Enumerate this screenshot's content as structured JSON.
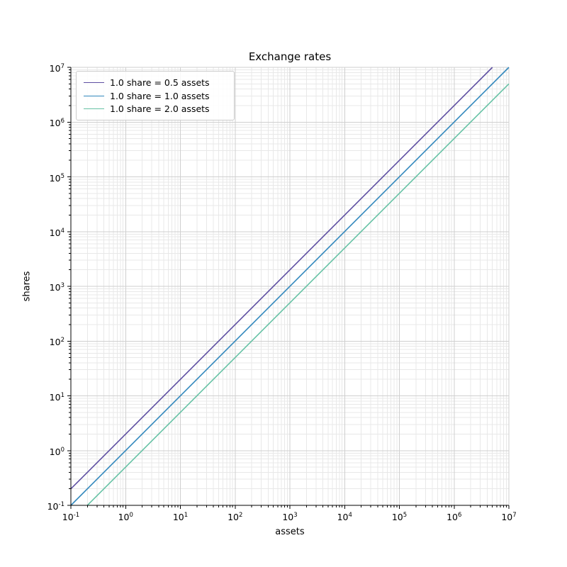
{
  "chart_data": {
    "type": "line",
    "title": "Exchange rates",
    "xlabel": "assets",
    "ylabel": "shares",
    "xscale": "log",
    "yscale": "log",
    "xlim": [
      0.1,
      10000000
    ],
    "ylim": [
      0.1,
      10000000
    ],
    "tick_exponents": [
      -1,
      0,
      1,
      2,
      3,
      4,
      5,
      6,
      7
    ],
    "grid": "major and minor gridlines on",
    "legend_location": "upper left",
    "series": [
      {
        "name": "1.0 share = 0.5 assets",
        "assets_per_share": 0.5,
        "relation": "shares = assets / 0.5",
        "sample_points": [
          [
            0.1,
            0.2
          ],
          [
            1000000,
            2000000
          ],
          [
            5000000,
            10000000
          ]
        ],
        "color": "#5e4fa2"
      },
      {
        "name": "1.0 share = 1.0 assets",
        "assets_per_share": 1.0,
        "relation": "shares = assets / 1.0",
        "sample_points": [
          [
            0.1,
            0.1
          ],
          [
            1000,
            1000
          ],
          [
            10000000,
            10000000
          ]
        ],
        "color": "#3288bd"
      },
      {
        "name": "1.0 share = 2.0 assets",
        "assets_per_share": 2.0,
        "relation": "shares = assets / 2.0",
        "sample_points": [
          [
            0.2,
            0.1
          ],
          [
            1000,
            500
          ],
          [
            10000000,
            5000000
          ]
        ],
        "color": "#66c2a5"
      }
    ]
  },
  "colors": {
    "background": "#ffffff",
    "grid_major": "#cfcfcf",
    "grid_minor": "#e8e8e8",
    "spine": "#000000",
    "text": "#000000",
    "legend_border": "#cccccc"
  }
}
